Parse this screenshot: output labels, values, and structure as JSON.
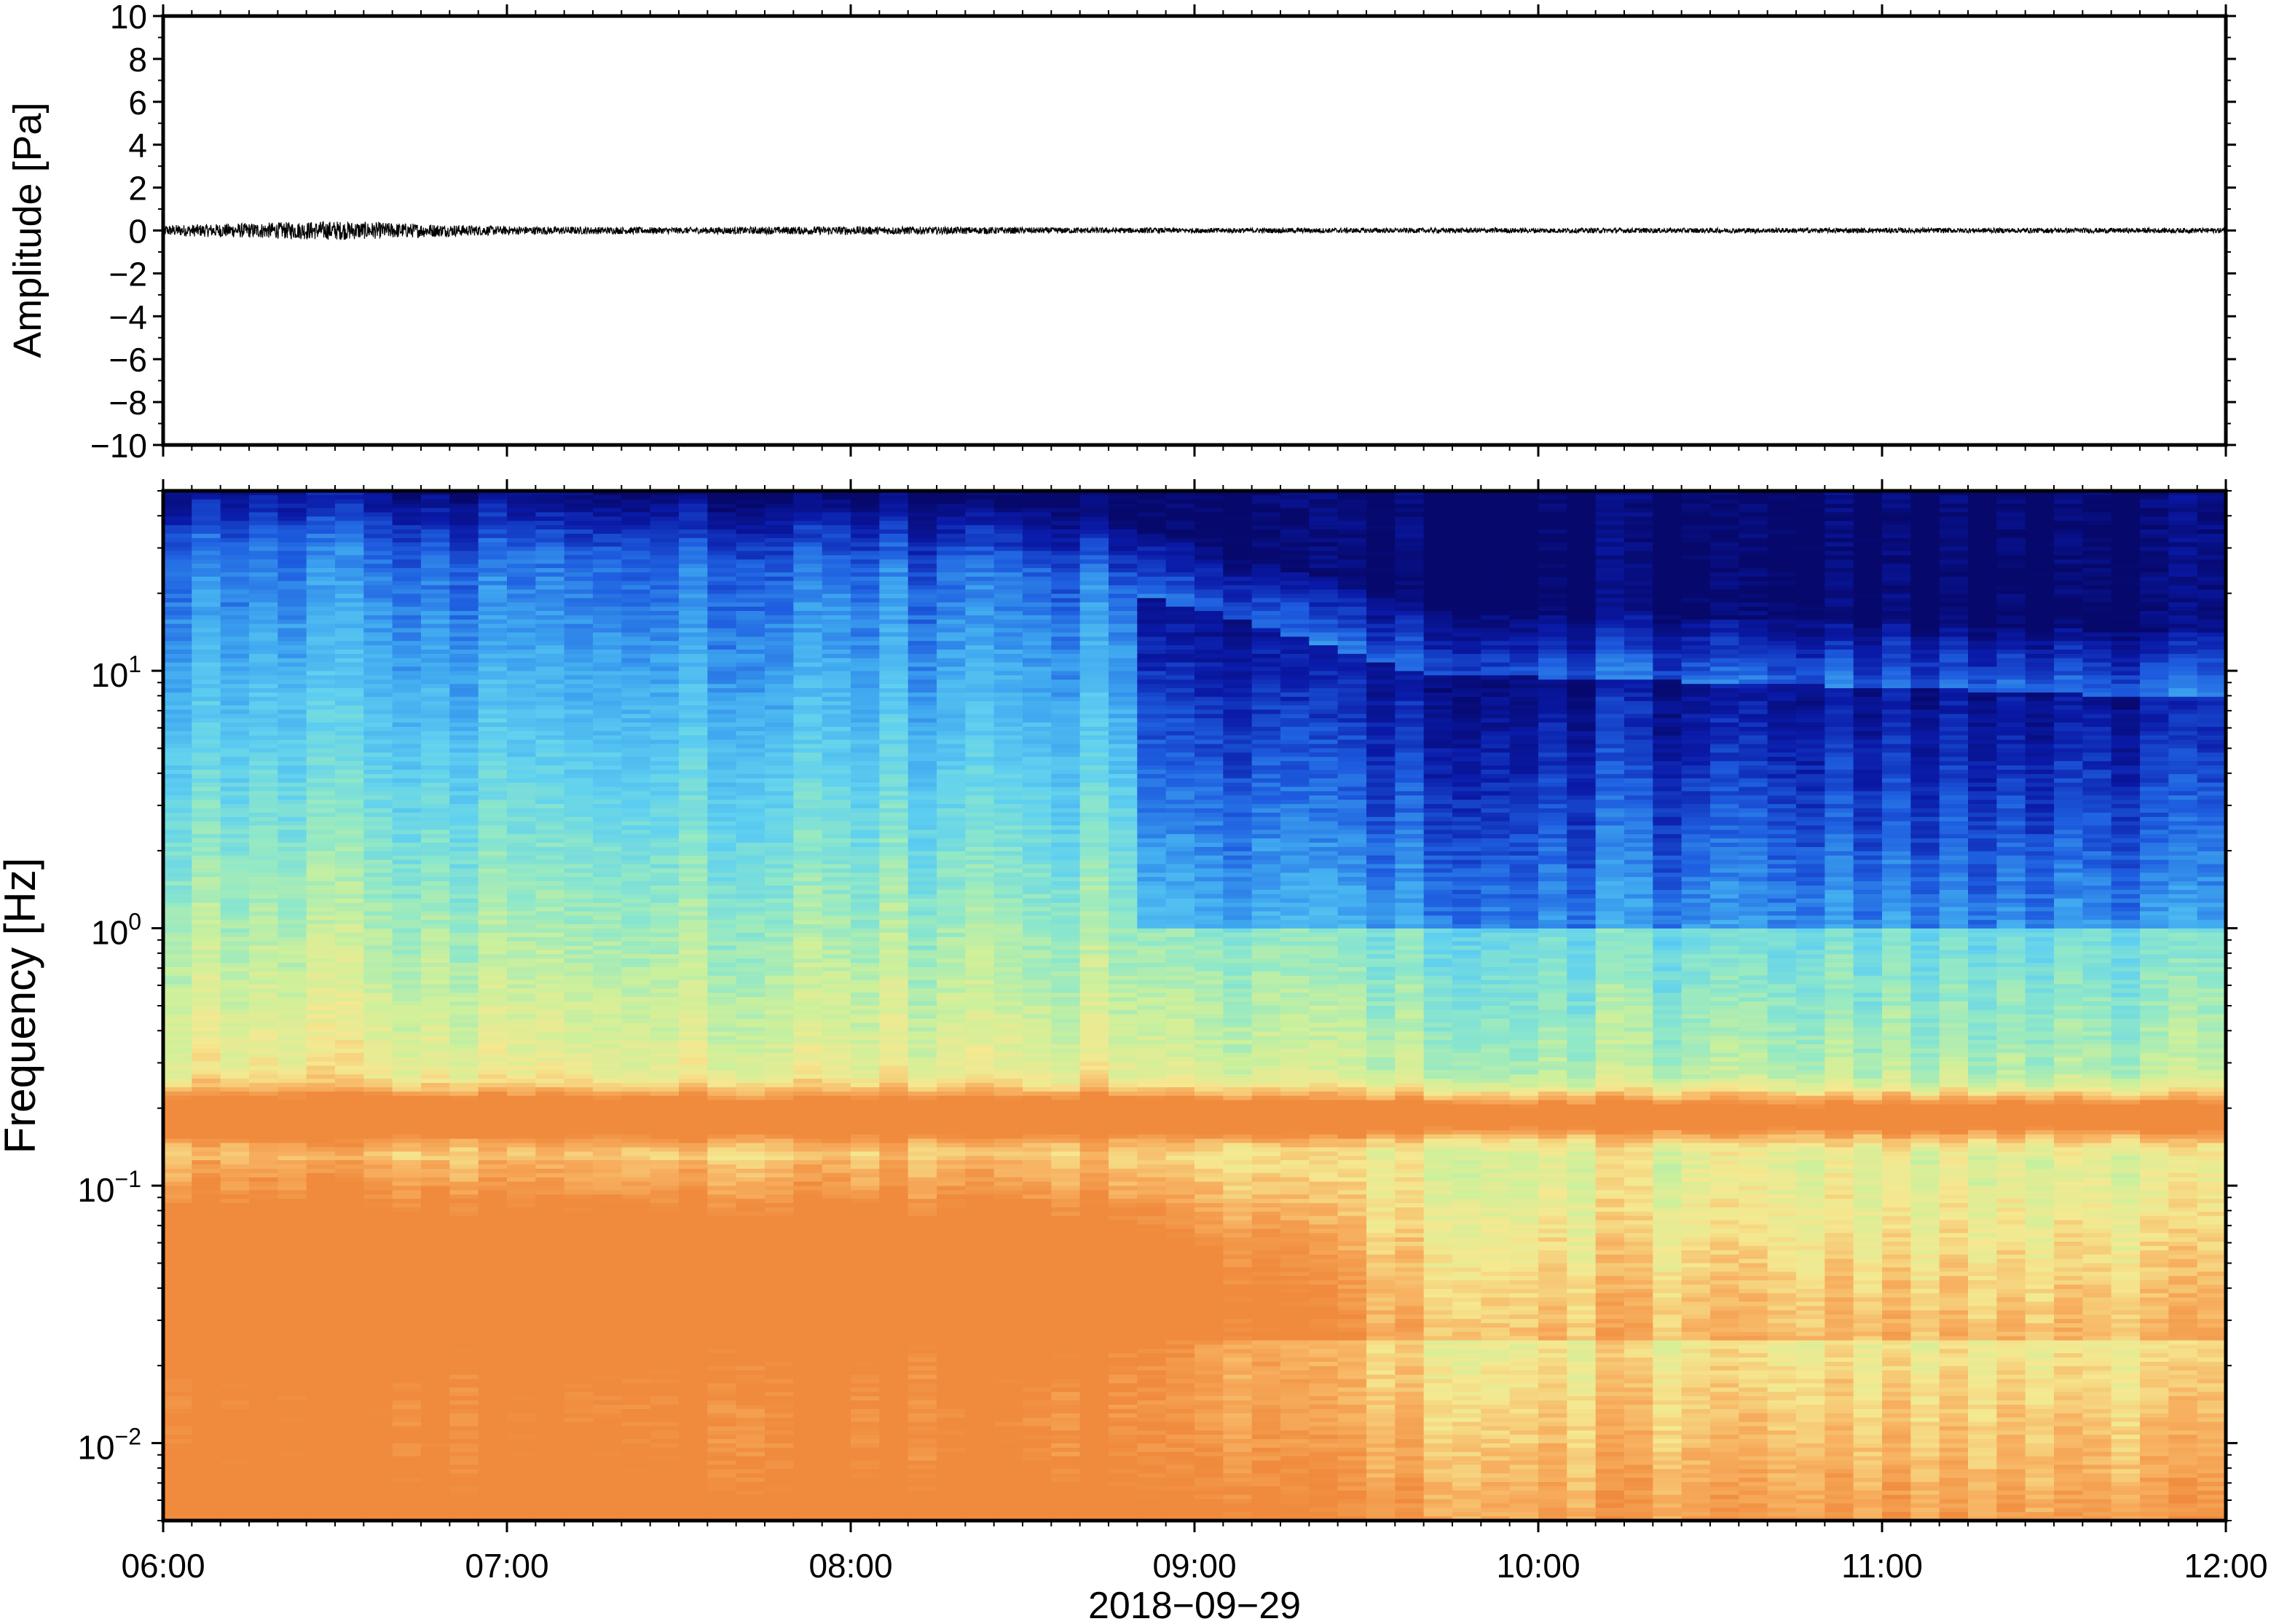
{
  "chart_data": [
    {
      "type": "line",
      "ylabel": "Amplitude [Pa]",
      "ylim": [
        -10,
        10
      ],
      "yticks": [
        10,
        8,
        6,
        4,
        2,
        0,
        -2,
        -4,
        -6,
        -8,
        -10
      ],
      "ytick_labels": [
        "10",
        "8",
        "6",
        "4",
        "2",
        "0",
        "−2",
        "−4",
        "−6",
        "−8",
        "−10"
      ],
      "xlim": [
        "06:00",
        "12:00"
      ],
      "series": [
        {
          "x": [
            "06:00",
            "06:30",
            "07:00",
            "07:30",
            "08:00",
            "08:30",
            "09:00",
            "09:30",
            "10:00",
            "10:30",
            "11:00",
            "11:30",
            "12:00"
          ],
          "values": [
            0,
            0,
            0,
            0,
            0,
            0,
            0,
            0,
            0,
            0,
            0,
            0,
            0
          ],
          "approx_max_abs": [
            0.25,
            0.45,
            0.2,
            0.15,
            0.2,
            0.15,
            0.12,
            0.12,
            0.12,
            0.12,
            0.12,
            0.12,
            0.12
          ]
        }
      ],
      "grid": false
    },
    {
      "type": "heatmap",
      "ylabel": "Frequency [Hz]",
      "xlabel": "2018−09−29",
      "y_scale": "log",
      "ylim_hz": [
        0.005,
        50
      ],
      "yticks": [
        10,
        1,
        0.1,
        0.01
      ],
      "ytick_labels": [
        {
          "base": "10",
          "exp": "1"
        },
        {
          "base": "10",
          "exp": "0"
        },
        {
          "base": "10",
          "exp": "−1"
        },
        {
          "base": "10",
          "exp": "−2"
        }
      ],
      "xticks": [
        "06:00",
        "07:00",
        "08:00",
        "09:00",
        "10:00",
        "11:00",
        "12:00"
      ],
      "xlim": [
        "06:00",
        "12:00"
      ],
      "colormap": [
        "#06086b",
        "#0a1aa8",
        "#1e5ee0",
        "#3fa8f0",
        "#5fd0f0",
        "#8fe8c8",
        "#cef09a",
        "#f5e890",
        "#f7b060",
        "#f08a3c"
      ],
      "grid": false
    }
  ],
  "x_axis": {
    "tick_labels": [
      "06:00",
      "07:00",
      "08:00",
      "09:00",
      "10:00",
      "11:00",
      "12:00"
    ],
    "date_label": "2018−09−29"
  }
}
